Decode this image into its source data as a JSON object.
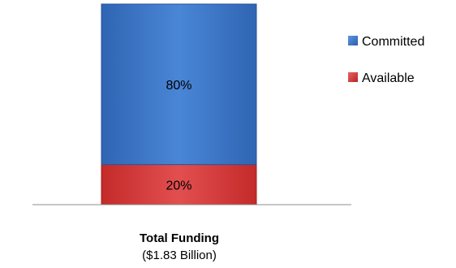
{
  "chart_data": {
    "type": "bar",
    "stacked": true,
    "percent": true,
    "categories": [
      "Total Funding"
    ],
    "category_sublabel": "($1.83 Billion)",
    "series": [
      {
        "name": "Available",
        "values": [
          20
        ],
        "label": "20%",
        "color": "#d93a3a"
      },
      {
        "name": "Committed",
        "values": [
          80
        ],
        "label": "80%",
        "color": "#3a75c4"
      }
    ],
    "ylim": [
      0,
      100
    ],
    "legend_position": "right",
    "grid": false
  }
}
